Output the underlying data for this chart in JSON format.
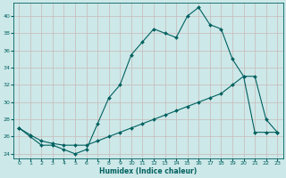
{
  "xlabel": "Humidex (Indice chaleur)",
  "background_color": "#cde8e8",
  "grid_color": "#c8b8b8",
  "line_color": "#006060",
  "xlim": [
    -0.5,
    23.5
  ],
  "ylim": [
    23.5,
    41.5
  ],
  "yticks": [
    24,
    26,
    28,
    30,
    32,
    34,
    36,
    38,
    40
  ],
  "xticks": [
    0,
    1,
    2,
    3,
    4,
    5,
    6,
    7,
    8,
    9,
    10,
    11,
    12,
    13,
    14,
    15,
    16,
    17,
    18,
    19,
    20,
    21,
    22,
    23
  ],
  "line1_x": [
    0,
    1,
    2,
    3,
    4,
    5,
    6,
    7,
    8,
    9,
    10,
    11,
    12,
    13,
    14,
    15,
    16,
    17,
    18,
    19,
    20,
    21,
    22,
    23
  ],
  "line1_y": [
    27,
    26,
    25,
    25,
    24.5,
    24,
    24.5,
    27.5,
    30.5,
    32,
    35.5,
    37,
    38.5,
    38,
    37.5,
    40,
    41,
    39,
    38.5,
    35,
    33,
    33,
    28,
    26.5
  ],
  "line2_x": [
    0,
    1,
    2,
    3,
    4,
    5,
    6,
    7,
    8,
    9,
    10,
    11,
    12,
    13,
    14,
    15,
    16,
    17,
    18,
    19,
    20,
    21,
    22,
    23
  ],
  "line2_y": [
    27,
    26.2,
    25.5,
    25.2,
    25,
    25,
    25,
    25.5,
    26,
    26.5,
    27,
    27.5,
    28,
    28.5,
    29,
    29.5,
    30,
    30.5,
    31,
    32,
    33,
    26.5,
    26.5,
    26.5
  ]
}
